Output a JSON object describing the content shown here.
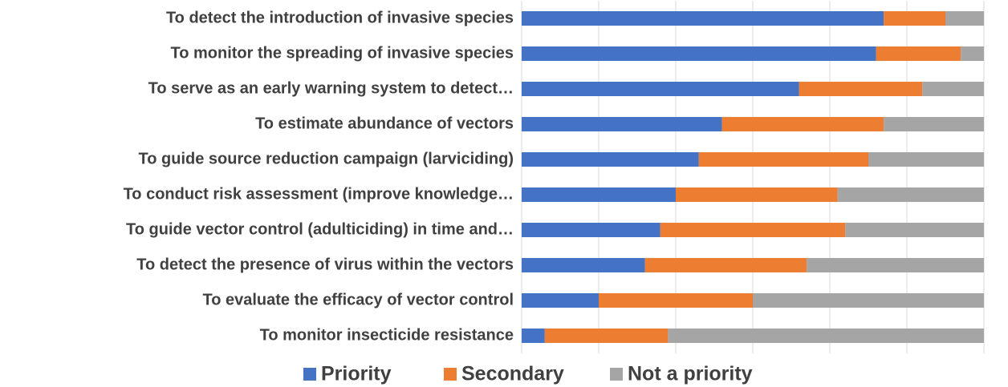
{
  "chart_data": {
    "type": "stacked_bar_horizontal",
    "categories": [
      "To detect the introduction of invasive species",
      "To monitor the spreading of invasive species",
      "To serve as an early warning system to detect…",
      "To estimate abundance of vectors",
      "To guide source reduction campaign (larviciding)",
      "To conduct risk assessment (improve knowledge…",
      "To guide vector control (adulticiding) in time and…",
      "To detect the presence of virus within the vectors",
      "To evaluate the efficacy of vector control",
      "To monitor insecticide resistance"
    ],
    "series": [
      {
        "name": "Priority",
        "color": "#4472c4",
        "values": [
          23.5,
          23,
          18,
          13,
          11.5,
          10,
          9,
          8,
          5,
          1.5
        ]
      },
      {
        "name": "Secondary",
        "color": "#ed7d31",
        "values": [
          4,
          5.5,
          8,
          10.5,
          11,
          10.5,
          12,
          10.5,
          10,
          8
        ]
      },
      {
        "name": "Not a priority",
        "color": "#a5a5a5",
        "values": [
          2.5,
          1.5,
          4,
          6.5,
          7.5,
          9.5,
          9,
          11.5,
          15,
          20.5
        ]
      }
    ],
    "xlim": [
      0,
      30
    ],
    "xticks": [
      0,
      5,
      10,
      15,
      20,
      25,
      30
    ],
    "grid": true,
    "legend": "bottom"
  }
}
